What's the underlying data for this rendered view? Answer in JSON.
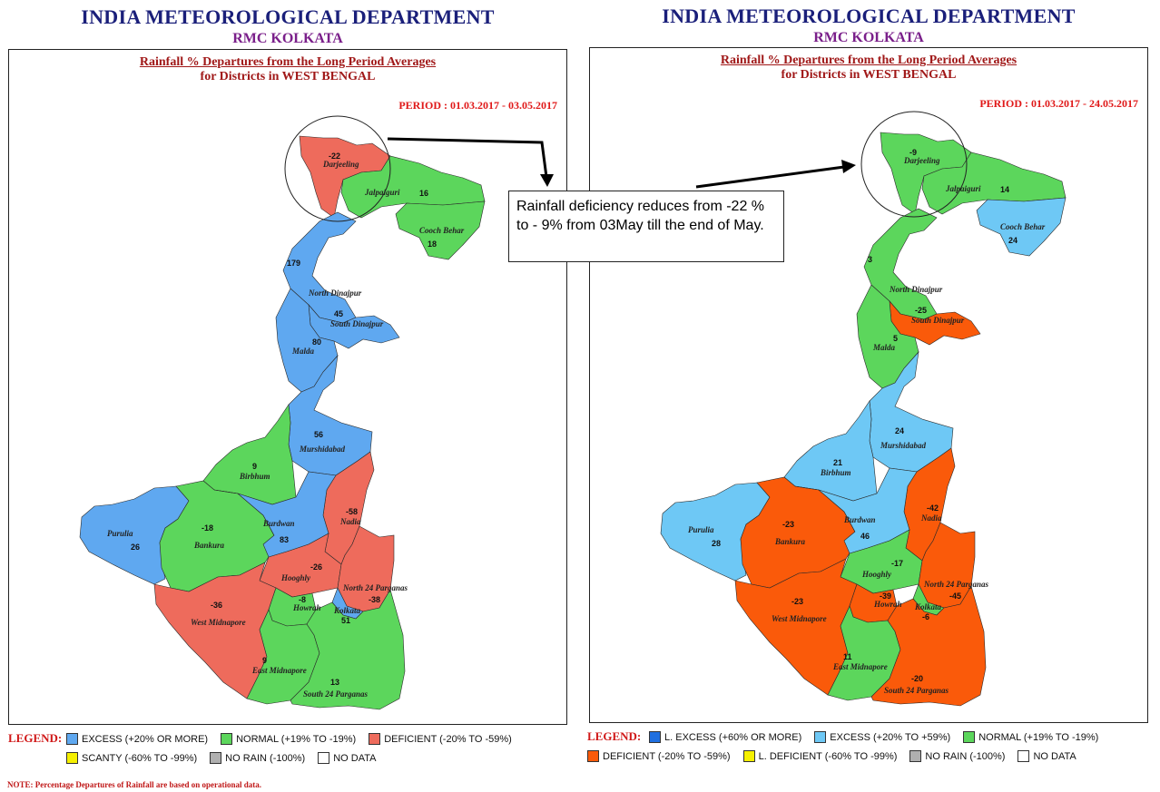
{
  "colors": {
    "l_excess": "#1f6fe0",
    "excess": "#5fa8f0",
    "excess_light": "#6ec8f5",
    "normal": "#5cd65c",
    "deficient": "#ee6b5c",
    "deficient_orange": "#fa5a0a",
    "l_deficient": "#f5f000",
    "scanty": "#f5f000",
    "no_rain": "#b0b0b0",
    "no_data": "#ffffff"
  },
  "left": {
    "header_title": "INDIA METEOROLOGICAL DEPARTMENT",
    "header_subtitle": "RMC KOLKATA",
    "map_title_line1": "Rainfall % Departures from the Long Period Averages",
    "map_title_line2": "for Districts in WEST BENGAL",
    "period": "PERIOD : 01.03.2017 - 03.05.2017",
    "legend_label": "LEGEND:",
    "legend_row1": [
      {
        "label": "EXCESS (+20% OR MORE)",
        "color_key": "excess"
      },
      {
        "label": "NORMAL (+19% TO -19%)",
        "color_key": "normal"
      },
      {
        "label": "DEFICIENT (-20% TO -59%)",
        "color_key": "deficient"
      }
    ],
    "legend_row2": [
      {
        "label": "SCANTY (-60% TO -99%)",
        "color_key": "scanty"
      },
      {
        "label": "NO RAIN (-100%)",
        "color_key": "no_rain"
      },
      {
        "label": "NO DATA",
        "color_key": "no_data"
      }
    ],
    "districts": {
      "darjeeling": {
        "name": "Darjeeling",
        "value": "-22",
        "category": "deficient"
      },
      "jalpaiguri": {
        "name": "Jalpaiguri",
        "value": "16",
        "category": "normal"
      },
      "cooch_behar": {
        "name": "Cooch Behar",
        "value": "18",
        "category": "normal"
      },
      "north_dinajpur": {
        "name": "North Dinajpur",
        "value": "179",
        "category": "excess"
      },
      "south_dinajpur": {
        "name": "South Dinajpur",
        "value": "45",
        "category": "excess"
      },
      "malda": {
        "name": "Malda",
        "value": "80",
        "category": "excess"
      },
      "murshidabad": {
        "name": "Murshidabad",
        "value": "56",
        "category": "excess"
      },
      "birbhum": {
        "name": "Birbhum",
        "value": "9",
        "category": "normal"
      },
      "nadia": {
        "name": "Nadia",
        "value": "-58",
        "category": "deficient"
      },
      "purulia": {
        "name": "Purulia",
        "value": "26",
        "category": "excess"
      },
      "bankura": {
        "name": "Bankura",
        "value": "-18",
        "category": "normal"
      },
      "burdwan": {
        "name": "Burdwan",
        "value": "83",
        "category": "excess"
      },
      "hooghly": {
        "name": "Hooghly",
        "value": "-26",
        "category": "deficient"
      },
      "north_24_parganas": {
        "name": "North 24 Parganas",
        "value": "-38",
        "category": "deficient"
      },
      "west_midnapore": {
        "name": "West Midnapore",
        "value": "-36",
        "category": "deficient"
      },
      "howrah": {
        "name": "Howrah",
        "value": "-8",
        "category": "normal"
      },
      "kolkata": {
        "name": "Kolkata",
        "value": "51",
        "category": "excess"
      },
      "east_midnapore": {
        "name": "East Midnapore",
        "value": "9",
        "category": "normal"
      },
      "south_24_parganas": {
        "name": "South 24 Parganas",
        "value": "13",
        "category": "normal"
      }
    }
  },
  "right": {
    "header_title": "INDIA METEOROLOGICAL DEPARTMENT",
    "header_subtitle": "RMC KOLKATA",
    "map_title_line1": "Rainfall % Departures from the Long Period Averages",
    "map_title_line2": "for Districts in WEST BENGAL",
    "period": "PERIOD : 01.03.2017 - 24.05.2017",
    "legend_label": "LEGEND:",
    "legend_row1": [
      {
        "label": "L. EXCESS (+60% OR MORE)",
        "color_key": "l_excess"
      },
      {
        "label": "EXCESS (+20% TO +59%)",
        "color_key": "excess_light"
      },
      {
        "label": "NORMAL (+19% TO -19%)",
        "color_key": "normal"
      }
    ],
    "legend_row2": [
      {
        "label": "DEFICIENT (-20% TO -59%)",
        "color_key": "deficient_orange"
      },
      {
        "label": "L. DEFICIENT (-60% TO -99%)",
        "color_key": "l_deficient"
      },
      {
        "label": "NO RAIN (-100%)",
        "color_key": "no_rain"
      },
      {
        "label": "NO DATA",
        "color_key": "no_data"
      }
    ],
    "districts": {
      "darjeeling": {
        "name": "Darjeeling",
        "value": "-9",
        "category": "normal"
      },
      "jalpaiguri": {
        "name": "Jalpaiguri",
        "value": "14",
        "category": "normal"
      },
      "cooch_behar": {
        "name": "Cooch Behar",
        "value": "24",
        "category": "excess_light"
      },
      "north_dinajpur": {
        "name": "North Dinajpur",
        "value": "3",
        "category": "normal"
      },
      "south_dinajpur": {
        "name": "South Dinajpur",
        "value": "-25",
        "category": "deficient_orange"
      },
      "malda": {
        "name": "Malda",
        "value": "5",
        "category": "normal"
      },
      "murshidabad": {
        "name": "Murshidabad",
        "value": "24",
        "category": "excess_light"
      },
      "birbhum": {
        "name": "Birbhum",
        "value": "21",
        "category": "excess_light"
      },
      "nadia": {
        "name": "Nadia",
        "value": "-42",
        "category": "deficient_orange"
      },
      "purulia": {
        "name": "Purulia",
        "value": "28",
        "category": "excess_light"
      },
      "bankura": {
        "name": "Bankura",
        "value": "-23",
        "category": "deficient_orange"
      },
      "burdwan": {
        "name": "Burdwan",
        "value": "46",
        "category": "excess_light"
      },
      "hooghly": {
        "name": "Hooghly",
        "value": "-17",
        "category": "normal"
      },
      "north_24_parganas": {
        "name": "North 24 Parganas",
        "value": "-45",
        "category": "deficient_orange"
      },
      "west_midnapore": {
        "name": "West Midnapore",
        "value": "-23",
        "category": "deficient_orange"
      },
      "howrah": {
        "name": "Howrah",
        "value": "-39",
        "category": "deficient_orange"
      },
      "kolkata": {
        "name": "Kolkata",
        "value": "-6",
        "category": "normal"
      },
      "east_midnapore": {
        "name": "East Midnapore",
        "value": "11",
        "category": "normal"
      },
      "south_24_parganas": {
        "name": "South 24 Parganas",
        "value": "-20",
        "category": "deficient_orange"
      }
    }
  },
  "callout_text": "Rainfall deficiency reduces from -22 % to - 9% from 03May till the end of May.",
  "note": "NOTE: Percentage Departures of Rainfall are based on operational data."
}
